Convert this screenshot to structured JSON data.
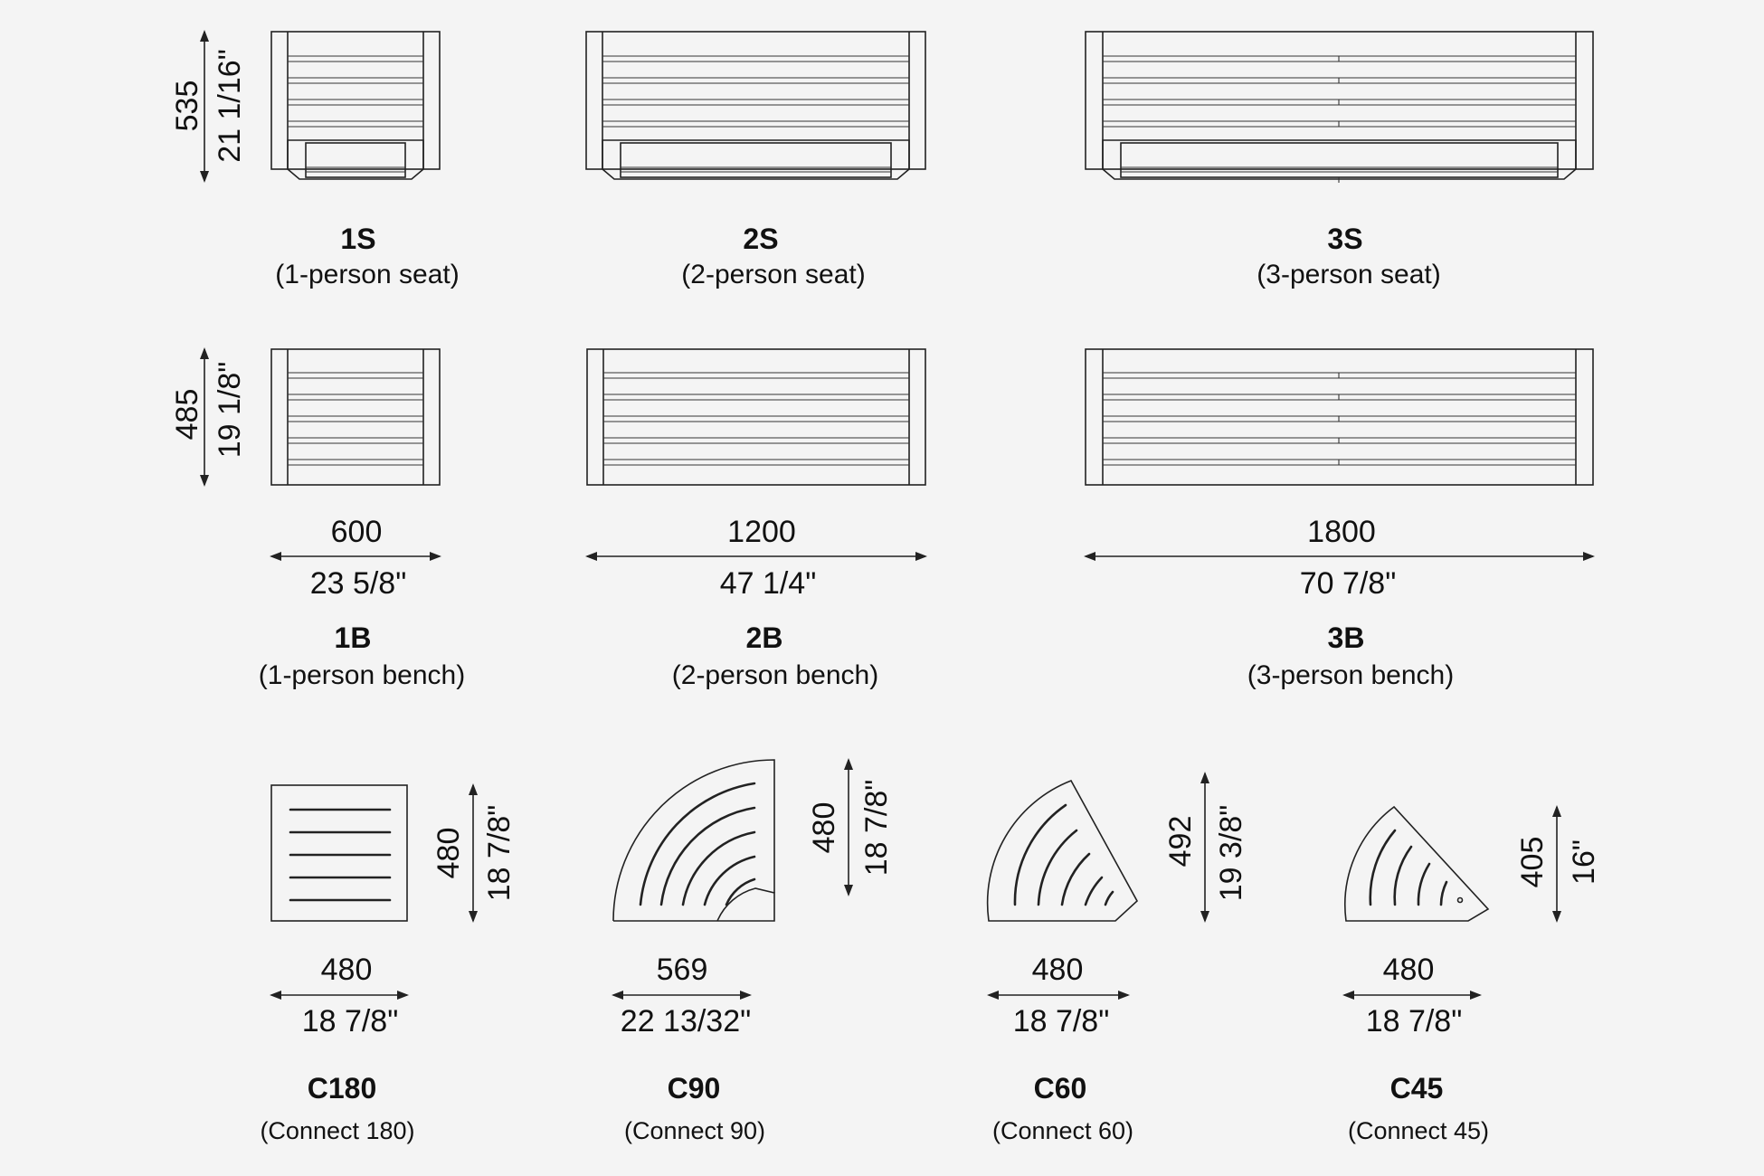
{
  "seats": [
    {
      "code": "1S",
      "name": "(1-person seat)",
      "height_mm": "535",
      "height_in": "21 1/16\""
    },
    {
      "code": "2S",
      "name": "(2-person seat)"
    },
    {
      "code": "3S",
      "name": "(3-person seat)"
    }
  ],
  "benches": [
    {
      "code": "1B",
      "name": "(1-person bench)",
      "height_mm": "485",
      "height_in": "19 1/8\"",
      "width_mm": "600",
      "width_in": "23 5/8\""
    },
    {
      "code": "2B",
      "name": "(2-person bench)",
      "width_mm": "1200",
      "width_in": "47 1/4\""
    },
    {
      "code": "3B",
      "name": "(3-person bench)",
      "width_mm": "1800",
      "width_in": "70 7/8\""
    }
  ],
  "connectors": [
    {
      "code": "C180",
      "name": "(Connect 180)",
      "width_mm": "480",
      "width_in": "18 7/8\"",
      "height_mm": "480",
      "height_in": "18 7/8\""
    },
    {
      "code": "C90",
      "name": "(Connect 90)",
      "width_mm": "569",
      "width_in": "22 13/32\"",
      "height_mm": "480",
      "height_in": "18 7/8\""
    },
    {
      "code": "C60",
      "name": "(Connect 60)",
      "width_mm": "480",
      "width_in": "18 7/8\"",
      "height_mm": "492",
      "height_in": "19 3/8\""
    },
    {
      "code": "C45",
      "name": "(Connect 45)",
      "width_mm": "480",
      "width_in": "18 7/8\"",
      "height_mm": "405",
      "height_in": "16\""
    }
  ]
}
